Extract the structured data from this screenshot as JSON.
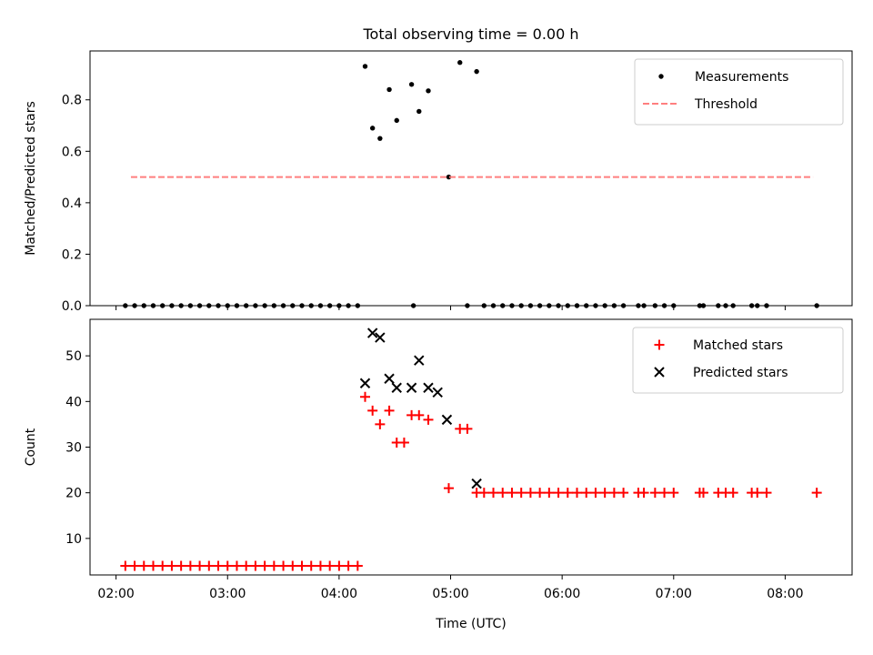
{
  "chart_data": [
    {
      "type": "scatter",
      "title": "Total observing time = 0.00 h",
      "xlabel": "",
      "ylabel": "Matched/Predicted stars",
      "xlim": [
        "01:46",
        "08:36"
      ],
      "ylim": [
        0.0,
        0.99
      ],
      "x_ticks": [
        "02:00",
        "03:00",
        "04:00",
        "05:00",
        "06:00",
        "07:00",
        "08:00"
      ],
      "y_ticks": [
        "0.0",
        "0.2",
        "0.4",
        "0.6",
        "0.8"
      ],
      "legend_position": "top-right",
      "series": [
        {
          "name": "Measurements",
          "marker": "dot",
          "color": "#000000",
          "points": [
            [
              "02:05",
              0
            ],
            [
              "02:10",
              0
            ],
            [
              "02:15",
              0
            ],
            [
              "02:20",
              0
            ],
            [
              "02:25",
              0
            ],
            [
              "02:30",
              0
            ],
            [
              "02:35",
              0
            ],
            [
              "02:40",
              0
            ],
            [
              "02:45",
              0
            ],
            [
              "02:50",
              0
            ],
            [
              "02:55",
              0
            ],
            [
              "03:00",
              0
            ],
            [
              "03:05",
              0
            ],
            [
              "03:10",
              0
            ],
            [
              "03:15",
              0
            ],
            [
              "03:20",
              0
            ],
            [
              "03:25",
              0
            ],
            [
              "03:30",
              0
            ],
            [
              "03:35",
              0
            ],
            [
              "03:40",
              0
            ],
            [
              "03:45",
              0
            ],
            [
              "03:50",
              0
            ],
            [
              "03:55",
              0
            ],
            [
              "04:00",
              0
            ],
            [
              "04:05",
              0
            ],
            [
              "04:10",
              0
            ],
            [
              "04:14",
              0.93
            ],
            [
              "04:18",
              0.69
            ],
            [
              "04:22",
              0.65
            ],
            [
              "04:27",
              0.84
            ],
            [
              "04:31",
              0.72
            ],
            [
              "04:39",
              0.86
            ],
            [
              "04:40",
              0
            ],
            [
              "04:43",
              0.755
            ],
            [
              "04:48",
              0.835
            ],
            [
              "04:59",
              0.5
            ],
            [
              "05:05",
              0.945
            ],
            [
              "05:09",
              0
            ],
            [
              "05:14",
              0.91
            ],
            [
              "05:18",
              0
            ],
            [
              "05:23",
              0
            ],
            [
              "05:28",
              0
            ],
            [
              "05:33",
              0
            ],
            [
              "05:38",
              0
            ],
            [
              "05:43",
              0
            ],
            [
              "05:48",
              0
            ],
            [
              "05:53",
              0
            ],
            [
              "05:58",
              0
            ],
            [
              "06:03",
              0
            ],
            [
              "06:08",
              0
            ],
            [
              "06:13",
              0
            ],
            [
              "06:18",
              0
            ],
            [
              "06:23",
              0
            ],
            [
              "06:28",
              0
            ],
            [
              "06:33",
              0
            ],
            [
              "06:41",
              0
            ],
            [
              "06:44",
              0
            ],
            [
              "06:50",
              0
            ],
            [
              "06:55",
              0
            ],
            [
              "07:00",
              0
            ],
            [
              "07:14",
              0
            ],
            [
              "07:16",
              0
            ],
            [
              "07:24",
              0
            ],
            [
              "07:28",
              0
            ],
            [
              "07:32",
              0
            ],
            [
              "07:42",
              0
            ],
            [
              "07:45",
              0
            ],
            [
              "07:50",
              0
            ],
            [
              "08:17",
              0
            ]
          ]
        },
        {
          "name": "Threshold",
          "marker": "dashed-line",
          "color": "#ff7f7f",
          "points": [
            [
              "02:08",
              0.5
            ],
            [
              "08:15",
              0.5
            ]
          ]
        }
      ]
    },
    {
      "type": "scatter",
      "title": "",
      "xlabel": "Time (UTC)",
      "ylabel": "Count",
      "xlim": [
        "01:46",
        "08:36"
      ],
      "ylim": [
        2,
        58
      ],
      "x_ticks": [
        "02:00",
        "03:00",
        "04:00",
        "05:00",
        "06:00",
        "07:00",
        "08:00"
      ],
      "y_ticks": [
        "10",
        "20",
        "30",
        "40",
        "50"
      ],
      "legend_position": "top-right",
      "series": [
        {
          "name": "Matched stars",
          "marker": "plus",
          "color": "#ff0000",
          "points": [
            [
              "02:05",
              4
            ],
            [
              "02:10",
              4
            ],
            [
              "02:15",
              4
            ],
            [
              "02:20",
              4
            ],
            [
              "02:25",
              4
            ],
            [
              "02:30",
              4
            ],
            [
              "02:35",
              4
            ],
            [
              "02:40",
              4
            ],
            [
              "02:45",
              4
            ],
            [
              "02:50",
              4
            ],
            [
              "02:55",
              4
            ],
            [
              "03:00",
              4
            ],
            [
              "03:05",
              4
            ],
            [
              "03:10",
              4
            ],
            [
              "03:15",
              4
            ],
            [
              "03:20",
              4
            ],
            [
              "03:25",
              4
            ],
            [
              "03:30",
              4
            ],
            [
              "03:35",
              4
            ],
            [
              "03:40",
              4
            ],
            [
              "03:45",
              4
            ],
            [
              "03:50",
              4
            ],
            [
              "03:55",
              4
            ],
            [
              "04:00",
              4
            ],
            [
              "04:05",
              4
            ],
            [
              "04:10",
              4
            ],
            [
              "04:14",
              41
            ],
            [
              "04:18",
              38
            ],
            [
              "04:22",
              35
            ],
            [
              "04:27",
              38
            ],
            [
              "04:31",
              31
            ],
            [
              "04:35",
              31
            ],
            [
              "04:39",
              37
            ],
            [
              "04:43",
              37
            ],
            [
              "04:48",
              36
            ],
            [
              "04:59",
              21
            ],
            [
              "05:05",
              34
            ],
            [
              "05:09",
              34
            ],
            [
              "05:14",
              20
            ],
            [
              "05:18",
              20
            ],
            [
              "05:23",
              20
            ],
            [
              "05:28",
              20
            ],
            [
              "05:33",
              20
            ],
            [
              "05:38",
              20
            ],
            [
              "05:43",
              20
            ],
            [
              "05:48",
              20
            ],
            [
              "05:53",
              20
            ],
            [
              "05:58",
              20
            ],
            [
              "06:03",
              20
            ],
            [
              "06:08",
              20
            ],
            [
              "06:13",
              20
            ],
            [
              "06:18",
              20
            ],
            [
              "06:23",
              20
            ],
            [
              "06:28",
              20
            ],
            [
              "06:33",
              20
            ],
            [
              "06:41",
              20
            ],
            [
              "06:44",
              20
            ],
            [
              "06:50",
              20
            ],
            [
              "06:55",
              20
            ],
            [
              "07:00",
              20
            ],
            [
              "07:14",
              20
            ],
            [
              "07:16",
              20
            ],
            [
              "07:24",
              20
            ],
            [
              "07:28",
              20
            ],
            [
              "07:32",
              20
            ],
            [
              "07:42",
              20
            ],
            [
              "07:45",
              20
            ],
            [
              "07:50",
              20
            ],
            [
              "08:17",
              20
            ]
          ]
        },
        {
          "name": "Predicted stars",
          "marker": "x",
          "color": "#000000",
          "points": [
            [
              "04:14",
              44
            ],
            [
              "04:18",
              55
            ],
            [
              "04:22",
              54
            ],
            [
              "04:27",
              45
            ],
            [
              "04:31",
              43
            ],
            [
              "04:39",
              43
            ],
            [
              "04:43",
              49
            ],
            [
              "04:48",
              43
            ],
            [
              "04:53",
              42
            ],
            [
              "04:58",
              36
            ],
            [
              "05:14",
              22
            ]
          ]
        }
      ]
    }
  ]
}
